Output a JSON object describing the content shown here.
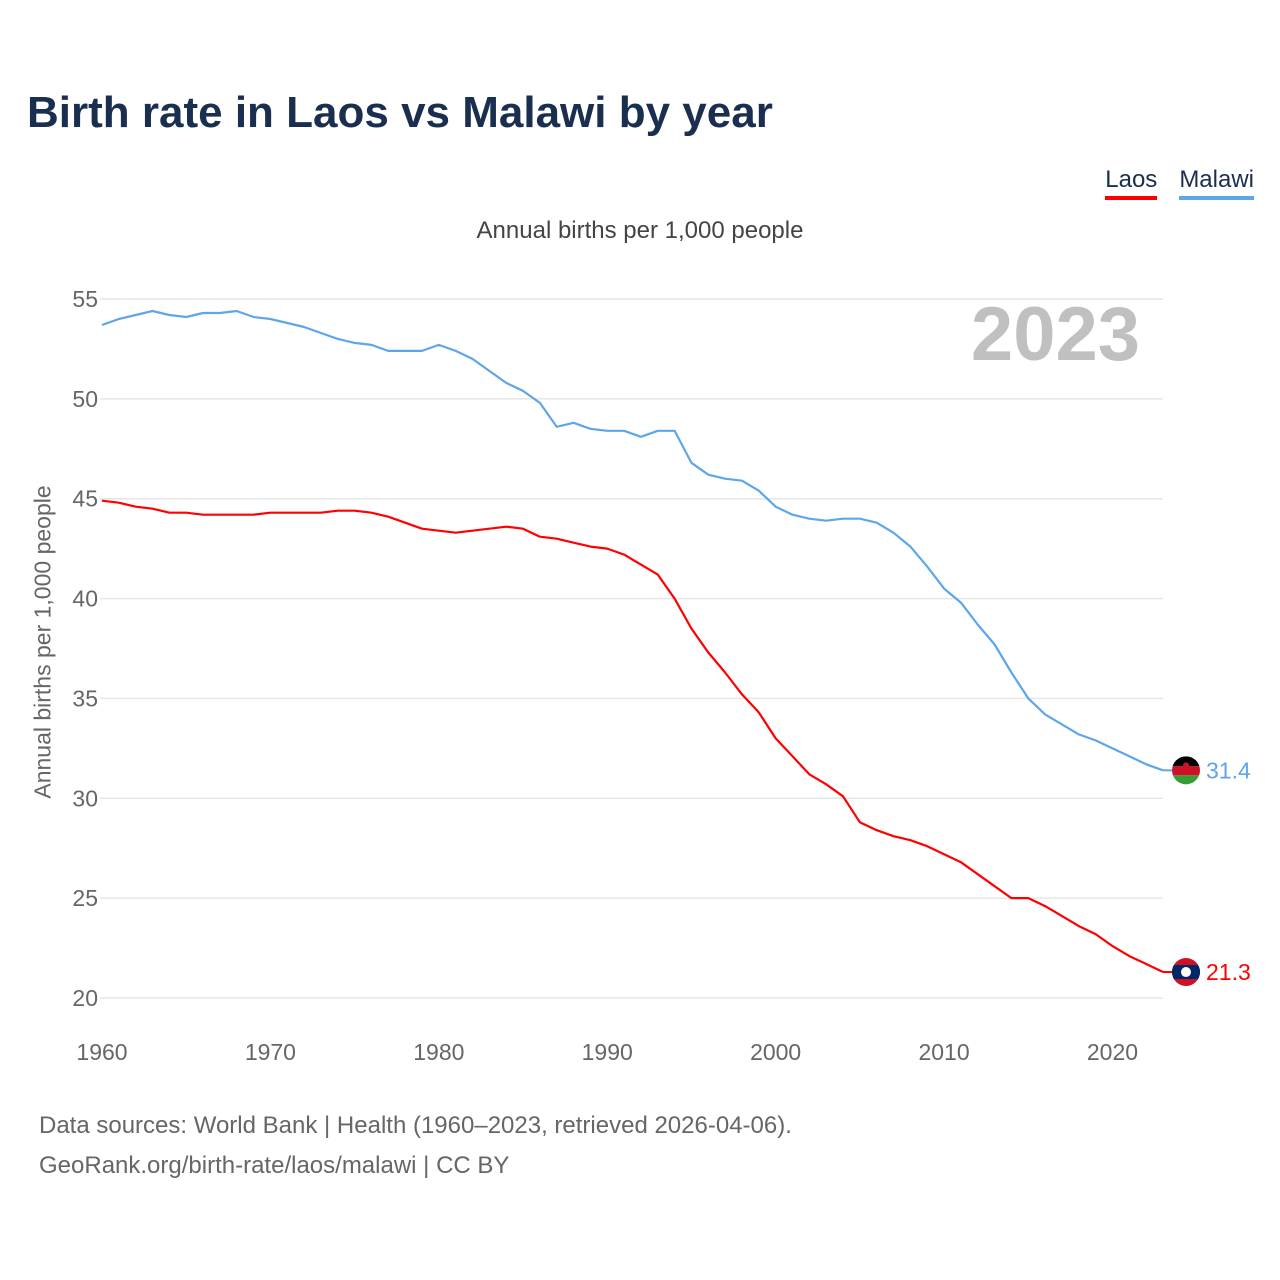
{
  "title": "Birth rate in Laos vs Malawi by year",
  "legend": [
    {
      "label": "Laos",
      "color": "#ff0000"
    },
    {
      "label": "Malawi",
      "color": "#5ea6ea"
    }
  ],
  "source": {
    "line1": "Data sources: World Bank | Health (1960–2023, retrieved 2026-04-06).",
    "line2": "GeoRank.org/birth-rate/laos/malawi | CC BY"
  },
  "chart_data": {
    "type": "line",
    "title": "Annual births per 1,000 people",
    "ylabel": "Annual births per 1,000 people",
    "xlabel": "",
    "year_label": "2023",
    "xlim": [
      1960,
      2023
    ],
    "ylim": [
      20,
      55
    ],
    "xticks": [
      1960,
      1970,
      1980,
      1990,
      2000,
      2010,
      2020
    ],
    "yticks": [
      20,
      25,
      30,
      35,
      40,
      45,
      50,
      55
    ],
    "grid": true,
    "legend_position": "top-right",
    "x_start": 1960,
    "series": [
      {
        "name": "Laos",
        "color": "#ff0000",
        "end_label": "21.3",
        "flag": "laos-flag",
        "values": [
          44.9,
          44.8,
          44.6,
          44.5,
          44.3,
          44.3,
          44.2,
          44.2,
          44.2,
          44.2,
          44.3,
          44.3,
          44.3,
          44.3,
          44.4,
          44.4,
          44.3,
          44.1,
          43.8,
          43.5,
          43.4,
          43.3,
          43.4,
          43.5,
          43.6,
          43.5,
          43.1,
          43.0,
          42.8,
          42.6,
          42.5,
          42.2,
          41.7,
          41.2,
          40.0,
          38.5,
          37.3,
          36.3,
          35.2,
          34.3,
          33.0,
          32.1,
          31.2,
          30.7,
          30.1,
          28.8,
          28.4,
          28.1,
          27.9,
          27.6,
          27.2,
          26.8,
          26.2,
          25.6,
          25.0,
          25.0,
          24.6,
          24.1,
          23.6,
          23.2,
          22.6,
          22.1,
          21.7,
          21.3
        ]
      },
      {
        "name": "Malawi",
        "color": "#5ea6ea",
        "end_label": "31.4",
        "flag": "malawi-flag",
        "values": [
          53.7,
          54.0,
          54.2,
          54.4,
          54.2,
          54.1,
          54.3,
          54.3,
          54.4,
          54.1,
          54.0,
          53.8,
          53.6,
          53.3,
          53.0,
          52.8,
          52.7,
          52.4,
          52.4,
          52.4,
          52.7,
          52.4,
          52.0,
          51.4,
          50.8,
          50.4,
          49.8,
          48.6,
          48.8,
          48.5,
          48.4,
          48.4,
          48.1,
          48.4,
          48.4,
          46.8,
          46.2,
          46.0,
          45.9,
          45.4,
          44.6,
          44.2,
          44.0,
          43.9,
          44.0,
          44.0,
          43.8,
          43.3,
          42.6,
          41.6,
          40.5,
          39.8,
          38.7,
          37.7,
          36.3,
          35.0,
          34.2,
          33.7,
          33.2,
          32.9,
          32.5,
          32.1,
          31.7,
          31.4
        ]
      }
    ]
  }
}
